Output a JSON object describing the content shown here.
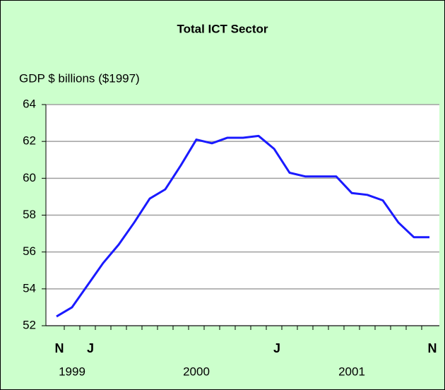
{
  "chart_data": {
    "type": "line",
    "title": "Total ICT Sector",
    "y_label": "GDP $ billions ($1997)",
    "categories": [
      "N",
      null,
      "J",
      null,
      null,
      null,
      null,
      null,
      null,
      null,
      null,
      null,
      null,
      null,
      "J",
      null,
      null,
      null,
      null,
      null,
      null,
      null,
      null,
      null,
      "N"
    ],
    "year_labels": [
      "1999",
      "2000",
      "2001"
    ],
    "series": [
      {
        "name": "Total ICT Sector",
        "color": "#1a1aff",
        "values": [
          52.5,
          53.0,
          54.2,
          55.4,
          56.4,
          57.6,
          58.9,
          59.4,
          60.7,
          62.1,
          61.9,
          62.2,
          62.2,
          62.3,
          61.6,
          60.3,
          60.1,
          60.1,
          60.1,
          59.2,
          59.1,
          58.8,
          57.6,
          56.8,
          56.8
        ]
      }
    ],
    "ylim": [
      52,
      64
    ],
    "yticks": [
      52,
      54,
      56,
      58,
      60,
      62,
      64
    ],
    "grid": true
  }
}
